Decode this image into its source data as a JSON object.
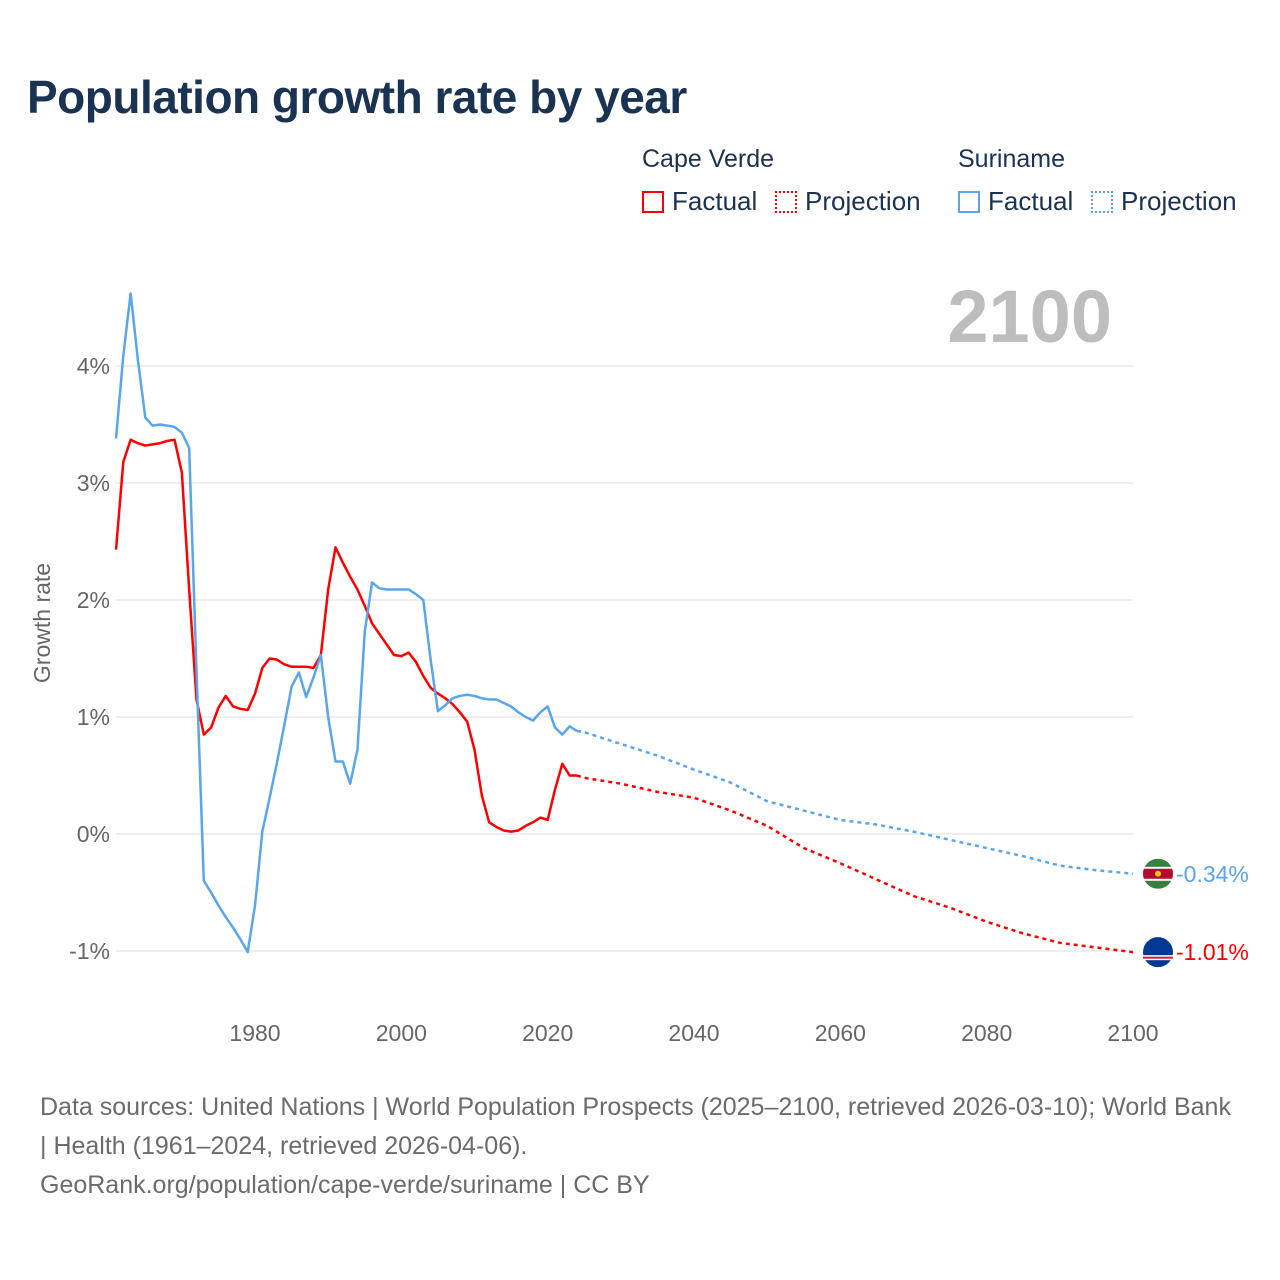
{
  "chart_data": {
    "type": "line",
    "title": "Population growth rate by year",
    "ylabel": "Growth rate",
    "xlabel": "",
    "current_year_label": "2100",
    "xlim": [
      1961,
      2100
    ],
    "ylim": [
      -1.5,
      4.8
    ],
    "x_ticks": [
      1980,
      2000,
      2020,
      2040,
      2060,
      2080,
      2100
    ],
    "y_ticks": [
      {
        "v": -1,
        "label": "-1%"
      },
      {
        "v": 0,
        "label": "0%"
      },
      {
        "v": 1,
        "label": "1%"
      },
      {
        "v": 2,
        "label": "2%"
      },
      {
        "v": 3,
        "label": "3%"
      },
      {
        "v": 4,
        "label": "4%"
      }
    ],
    "grid": true,
    "legend": {
      "placement": "top-right",
      "groups": [
        "Cape Verde",
        "Suriname"
      ],
      "factual": "Factual",
      "projection": "Projection"
    },
    "series": [
      {
        "name": "Cape Verde",
        "color": "#ff0000",
        "end_label": "-1.01%",
        "factual_start": 1961,
        "factual": [
          2.43,
          3.18,
          3.37,
          3.34,
          3.32,
          3.33,
          3.34,
          3.36,
          3.37,
          3.09,
          2.09,
          1.15,
          0.85,
          0.91,
          1.08,
          1.18,
          1.09,
          1.07,
          1.06,
          1.2,
          1.42,
          1.5,
          1.49,
          1.45,
          1.43,
          1.43,
          1.43,
          1.42,
          1.53,
          2.09,
          2.45,
          2.32,
          2.2,
          2.09,
          1.95,
          1.8,
          1.71,
          1.62,
          1.53,
          1.52,
          1.55,
          1.47,
          1.35,
          1.25,
          1.2,
          1.16,
          1.11,
          1.04,
          0.96,
          0.72,
          0.33,
          0.1,
          0.06,
          0.03,
          0.02,
          0.03,
          0.07,
          0.1,
          0.14,
          0.12,
          0.38,
          0.6,
          0.5,
          0.5
        ],
        "projection_x": [
          2024,
          2025,
          2030,
          2035,
          2040,
          2045,
          2050,
          2055,
          2060,
          2065,
          2070,
          2075,
          2080,
          2085,
          2090,
          2095,
          2100
        ],
        "projection": [
          0.5,
          0.48,
          0.43,
          0.36,
          0.31,
          0.2,
          0.07,
          -0.12,
          -0.25,
          -0.39,
          -0.53,
          -0.63,
          -0.75,
          -0.85,
          -0.93,
          -0.97,
          -1.01
        ]
      },
      {
        "name": "Suriname",
        "color": "#5aa5ec",
        "end_label": "-0.34%",
        "factual_start": 1961,
        "factual": [
          3.38,
          4.09,
          4.62,
          4.05,
          3.56,
          3.49,
          3.5,
          3.49,
          3.48,
          3.43,
          3.3,
          1.4,
          -0.4,
          -0.5,
          -0.61,
          -0.71,
          -0.8,
          -0.9,
          -1.01,
          -0.61,
          0.02,
          0.31,
          0.61,
          0.93,
          1.26,
          1.38,
          1.17,
          1.34,
          1.53,
          1.0,
          0.62,
          0.62,
          0.43,
          0.72,
          1.73,
          2.15,
          2.1,
          2.09,
          2.09,
          2.09,
          2.09,
          2.05,
          2.0,
          1.49,
          1.05,
          1.1,
          1.16,
          1.18,
          1.19,
          1.18,
          1.16,
          1.15,
          1.15,
          1.12,
          1.09,
          1.04,
          1.0,
          0.97,
          1.04,
          1.09,
          0.91,
          0.85,
          0.92,
          0.88
        ],
        "projection_x": [
          2024,
          2025,
          2030,
          2035,
          2040,
          2045,
          2050,
          2055,
          2060,
          2065,
          2070,
          2075,
          2080,
          2085,
          2090,
          2095,
          2100
        ],
        "projection": [
          0.88,
          0.87,
          0.77,
          0.67,
          0.55,
          0.44,
          0.28,
          0.2,
          0.12,
          0.08,
          0.02,
          -0.05,
          -0.12,
          -0.19,
          -0.27,
          -0.31,
          -0.34
        ]
      }
    ]
  },
  "footer": {
    "line1": "Data sources: United Nations | World Population Prospects (2025–2100, retrieved 2026-03-10); World Bank | Health (1961–2024, retrieved 2026-04-06).",
    "line2": "GeoRank.org/population/cape-verde/suriname | CC BY"
  }
}
